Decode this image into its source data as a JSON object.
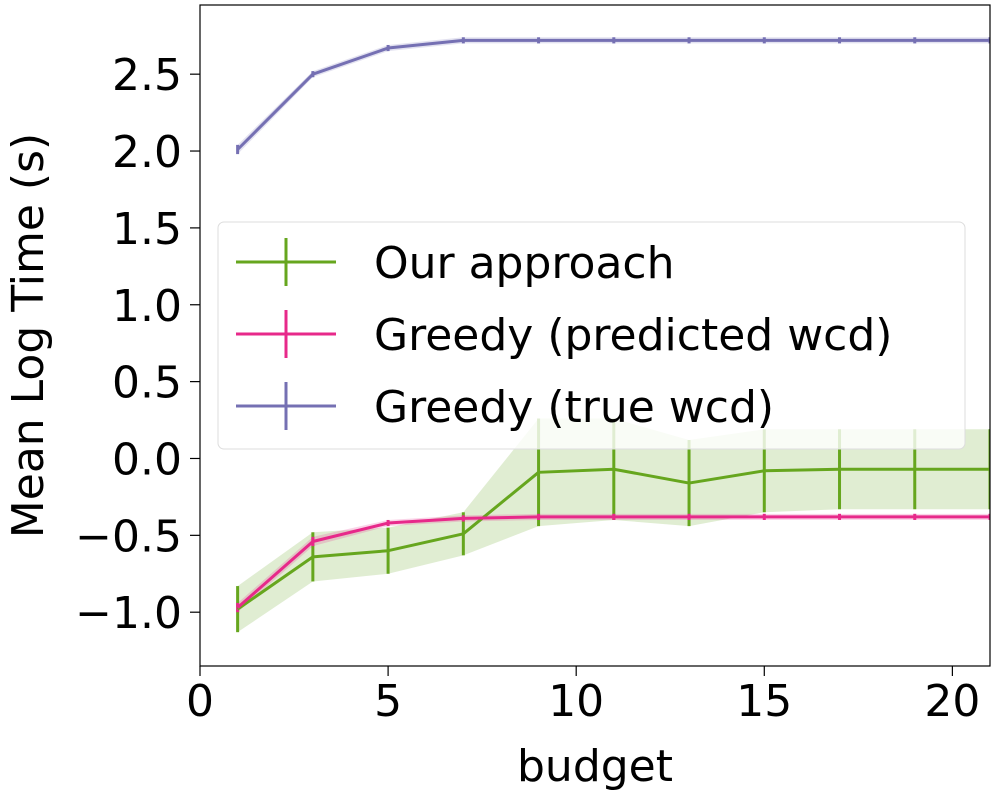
{
  "chart_data": {
    "type": "line",
    "title": "",
    "xlabel": "budget",
    "ylabel": "Mean Log Time (s)",
    "xlim": [
      0,
      21
    ],
    "ylim": [
      -1.35,
      2.95
    ],
    "xticks": [
      0,
      5,
      10,
      15,
      20
    ],
    "xtick_labels": [
      "0",
      "5",
      "10",
      "15",
      "20"
    ],
    "yticks": [
      -1.0,
      -0.5,
      0.0,
      0.5,
      1.0,
      1.5,
      2.0,
      2.5
    ],
    "ytick_labels": [
      "−1.0",
      "−0.5",
      "0.0",
      "0.5",
      "1.0",
      "1.5",
      "2.0",
      "2.5"
    ],
    "grid": false,
    "legend_position": "center-left",
    "x": [
      1,
      3,
      5,
      7,
      9,
      11,
      13,
      15,
      17,
      19,
      21
    ],
    "series": [
      {
        "name": "Our approach",
        "color": "#66a61e",
        "values": [
          -0.98,
          -0.64,
          -0.6,
          -0.49,
          -0.09,
          -0.07,
          -0.16,
          -0.08,
          -0.07,
          -0.07,
          -0.07
        ],
        "errors": [
          0.15,
          0.16,
          0.15,
          0.14,
          0.35,
          0.33,
          0.28,
          0.27,
          0.26,
          0.26,
          0.26
        ]
      },
      {
        "name": "Greedy (predicted wcd)",
        "color": "#e7298a",
        "values": [
          -0.97,
          -0.54,
          -0.42,
          -0.39,
          -0.38,
          -0.38,
          -0.38,
          -0.38,
          -0.38,
          -0.38,
          -0.38
        ],
        "errors": [
          0.03,
          0.03,
          0.02,
          0.02,
          0.02,
          0.02,
          0.02,
          0.02,
          0.02,
          0.02,
          0.02
        ]
      },
      {
        "name": "Greedy (true wcd)",
        "color": "#7570b3",
        "values": [
          2.01,
          2.5,
          2.67,
          2.72,
          2.72,
          2.72,
          2.72,
          2.72,
          2.72,
          2.72,
          2.72
        ],
        "errors": [
          0.03,
          0.02,
          0.02,
          0.02,
          0.02,
          0.02,
          0.02,
          0.02,
          0.02,
          0.02,
          0.02
        ]
      }
    ]
  }
}
